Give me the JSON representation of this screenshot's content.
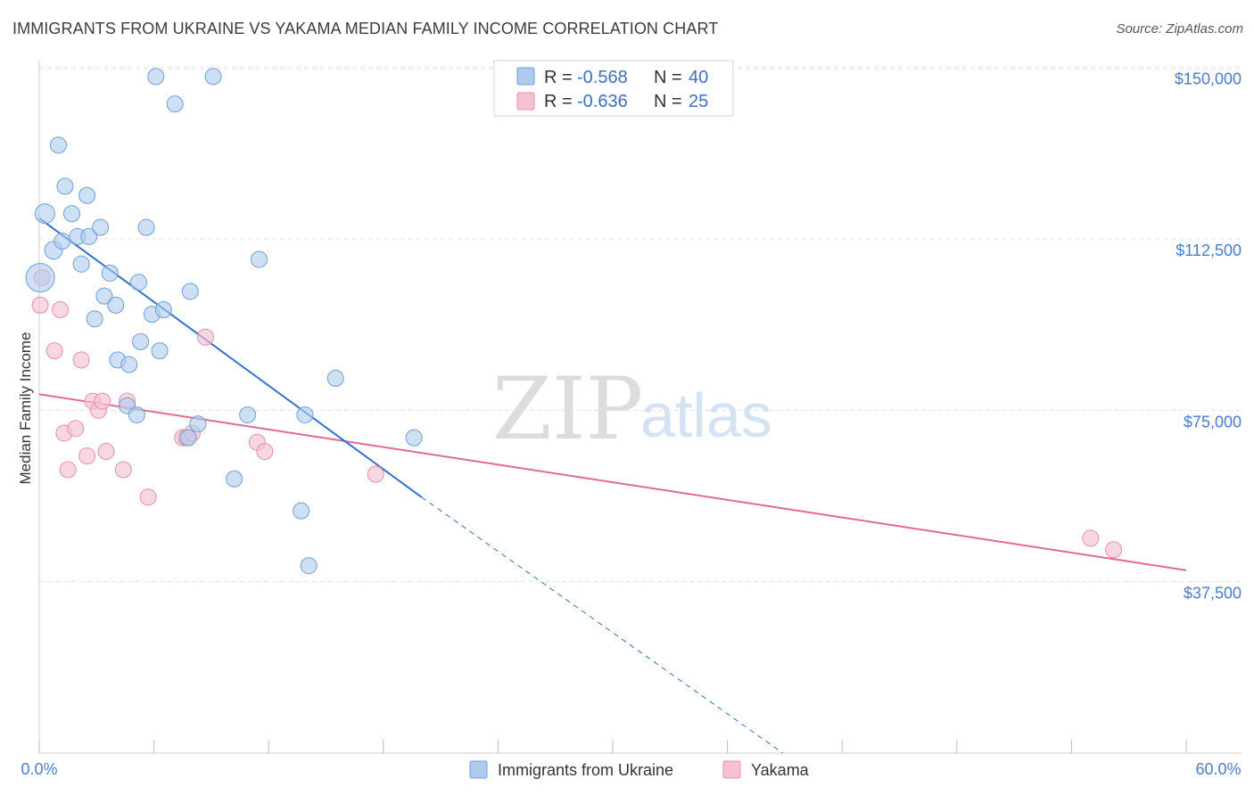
{
  "title": "IMMIGRANTS FROM UKRAINE VS YAKAMA MEDIAN FAMILY INCOME CORRELATION CHART",
  "source": "Source: ZipAtlas.com",
  "watermark": {
    "zip": "ZIP",
    "atlas": "atlas"
  },
  "colors": {
    "ukraine_fill": "#aecbee",
    "ukraine_stroke": "#6e9ed8",
    "ukraine_line": "#2f72cc",
    "yakama_fill": "#f6c2d2",
    "yakama_stroke": "#e78fab",
    "yakama_line": "#e06a93",
    "grid": "#e3e3e3",
    "tick_label": "#4a7cc9"
  },
  "legend": {
    "rows": [
      {
        "series": "ukraine",
        "r_label": "R = ",
        "r_value": "-0.568",
        "n_label": "N = ",
        "n_value": "40"
      },
      {
        "series": "yakama",
        "r_label": "R = ",
        "r_value": "-0.636",
        "n_label": "N = ",
        "n_value": "25"
      }
    ]
  },
  "chart_data": {
    "type": "scatter",
    "title": "IMMIGRANTS FROM UKRAINE VS YAKAMA MEDIAN FAMILY INCOME CORRELATION CHART",
    "xlabel": "",
    "ylabel": "Median Family Income",
    "xlim": [
      0,
      60
    ],
    "ylim": [
      0,
      155000
    ],
    "x_tick_labels": [
      "0.0%",
      "60.0%"
    ],
    "y_ticks": [
      37500,
      75000,
      112500,
      150000
    ],
    "y_tick_labels": [
      "$37,500",
      "$75,000",
      "$112,500",
      "$150,000"
    ],
    "grid": true,
    "legend_position": "bottom-center",
    "series": [
      {
        "name": "Immigrants from Ukraine",
        "r": -0.568,
        "n": 40,
        "points": [
          [
            0.05,
            104000,
            16
          ],
          [
            0.3,
            118000,
            11
          ],
          [
            0.75,
            110000,
            10
          ],
          [
            1.0,
            133000,
            9
          ],
          [
            1.2,
            112000,
            9
          ],
          [
            1.35,
            124000,
            9
          ],
          [
            1.7,
            118000,
            9
          ],
          [
            2.0,
            113000,
            9
          ],
          [
            2.2,
            107000,
            9
          ],
          [
            2.5,
            122000,
            9
          ],
          [
            2.6,
            113000,
            9
          ],
          [
            3.2,
            115000,
            9
          ],
          [
            2.9,
            95000,
            9
          ],
          [
            3.4,
            100000,
            9
          ],
          [
            3.7,
            105000,
            9
          ],
          [
            4.0,
            98000,
            9
          ],
          [
            4.1,
            86000,
            9
          ],
          [
            4.6,
            76000,
            9
          ],
          [
            4.7,
            85000,
            9
          ],
          [
            5.1,
            74000,
            9
          ],
          [
            5.2,
            103000,
            9
          ],
          [
            5.3,
            90000,
            9
          ],
          [
            5.6,
            115000,
            9
          ],
          [
            5.9,
            96000,
            9
          ],
          [
            6.1,
            148000,
            9
          ],
          [
            6.3,
            88000,
            9
          ],
          [
            6.5,
            97000,
            9
          ],
          [
            7.1,
            142000,
            9
          ],
          [
            7.8,
            69000,
            9
          ],
          [
            7.9,
            101000,
            9
          ],
          [
            8.3,
            72000,
            9
          ],
          [
            9.1,
            148000,
            9
          ],
          [
            10.2,
            60000,
            9
          ],
          [
            10.9,
            74000,
            9
          ],
          [
            11.5,
            108000,
            9
          ],
          [
            13.7,
            53000,
            9
          ],
          [
            13.9,
            74000,
            9
          ],
          [
            14.1,
            41000,
            9
          ],
          [
            15.5,
            82000,
            9
          ],
          [
            19.6,
            69000,
            9
          ]
        ],
        "trend": {
          "x_start": 0,
          "y_start": 117000,
          "x_end": 20,
          "y_end": 56000,
          "dashed_to_x": 38.9
        }
      },
      {
        "name": "Yakama",
        "r": -0.636,
        "n": 25,
        "points": [
          [
            0.15,
            104000,
            9
          ],
          [
            0.05,
            98000,
            9
          ],
          [
            0.8,
            88000,
            9
          ],
          [
            1.1,
            97000,
            9
          ],
          [
            1.3,
            70000,
            9
          ],
          [
            1.5,
            62000,
            9
          ],
          [
            1.9,
            71000,
            9
          ],
          [
            2.2,
            86000,
            9
          ],
          [
            2.5,
            65000,
            9
          ],
          [
            2.8,
            77000,
            9
          ],
          [
            3.1,
            75000,
            9
          ],
          [
            3.3,
            77000,
            9
          ],
          [
            3.5,
            66000,
            9
          ],
          [
            4.4,
            62000,
            9
          ],
          [
            4.6,
            77000,
            9
          ],
          [
            5.7,
            56000,
            9
          ],
          [
            7.5,
            69000,
            9
          ],
          [
            7.7,
            69000,
            9
          ],
          [
            8.0,
            70000,
            9
          ],
          [
            8.7,
            91000,
            9
          ],
          [
            11.4,
            68000,
            9
          ],
          [
            11.8,
            66000,
            9
          ],
          [
            17.6,
            61000,
            9
          ],
          [
            55.0,
            47000,
            9
          ],
          [
            56.2,
            44500,
            9
          ]
        ],
        "trend": {
          "x_start": 0,
          "y_start": 78500,
          "x_end": 60,
          "y_end": 40000
        }
      }
    ]
  },
  "bottom_legend": [
    {
      "series": "ukraine",
      "label": "Immigrants from Ukraine"
    },
    {
      "series": "yakama",
      "label": "Yakama"
    }
  ]
}
